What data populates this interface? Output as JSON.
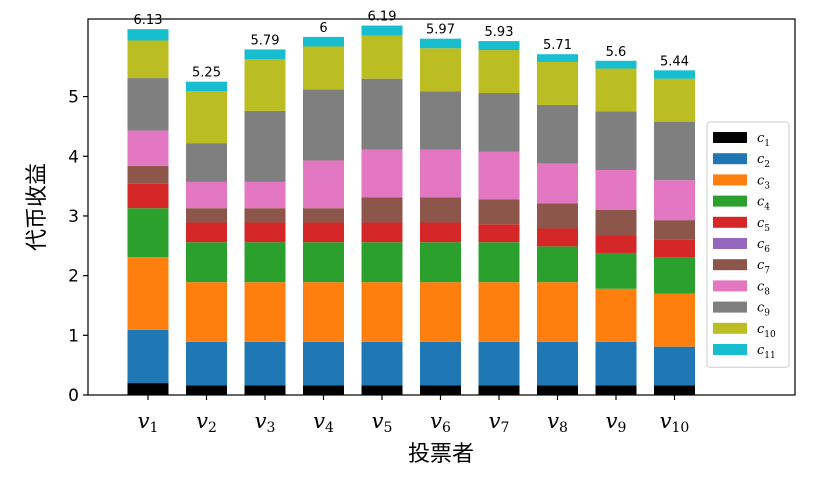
{
  "chart_data": {
    "type": "bar",
    "stacked": true,
    "categories": [
      {
        "base": "v",
        "sub": "1"
      },
      {
        "base": "v",
        "sub": "2"
      },
      {
        "base": "v",
        "sub": "3"
      },
      {
        "base": "v",
        "sub": "4"
      },
      {
        "base": "v",
        "sub": "5"
      },
      {
        "base": "v",
        "sub": "6"
      },
      {
        "base": "v",
        "sub": "7"
      },
      {
        "base": "v",
        "sub": "8"
      },
      {
        "base": "v",
        "sub": "9"
      },
      {
        "base": "v",
        "sub": "10"
      }
    ],
    "xlabel": "投票者",
    "ylabel": "代币收益",
    "ylim": [
      0,
      6.3
    ],
    "yticks": [
      "0",
      "1",
      "2",
      "3",
      "4",
      "5"
    ],
    "totals": [
      "6.13",
      "5.25",
      "5.79",
      "6",
      "6.19",
      "5.97",
      "5.93",
      "5.71",
      "5.6",
      "5.44"
    ],
    "legend_position": "right",
    "grid": false,
    "series": [
      {
        "name": {
          "base": "c",
          "sub": "1"
        },
        "color": "#000000",
        "values": [
          0.2,
          0.16,
          0.16,
          0.16,
          0.16,
          0.16,
          0.16,
          0.16,
          0.16,
          0.16
        ]
      },
      {
        "name": {
          "base": "c",
          "sub": "2"
        },
        "color": "#1f77b4",
        "values": [
          0.89,
          0.73,
          0.73,
          0.73,
          0.73,
          0.73,
          0.73,
          0.73,
          0.73,
          0.65
        ]
      },
      {
        "name": {
          "base": "c",
          "sub": "3"
        },
        "color": "#ff7f0e",
        "values": [
          1.22,
          1.0,
          1.0,
          1.0,
          1.0,
          1.0,
          1.0,
          1.0,
          0.89,
          0.89
        ]
      },
      {
        "name": {
          "base": "c",
          "sub": "4"
        },
        "color": "#2ca02c",
        "values": [
          0.82,
          0.67,
          0.67,
          0.67,
          0.67,
          0.67,
          0.67,
          0.6,
          0.6,
          0.6
        ]
      },
      {
        "name": {
          "base": "c",
          "sub": "5"
        },
        "color": "#d62728",
        "values": [
          0.41,
          0.33,
          0.33,
          0.33,
          0.33,
          0.33,
          0.3,
          0.3,
          0.3,
          0.3
        ]
      },
      {
        "name": {
          "base": "c",
          "sub": "6"
        },
        "color": "#9467bd",
        "values": [
          0,
          0,
          0,
          0,
          0,
          0,
          0,
          0,
          0,
          0
        ]
      },
      {
        "name": {
          "base": "c",
          "sub": "7"
        },
        "color": "#8c564b",
        "values": [
          0.3,
          0.24,
          0.24,
          0.24,
          0.42,
          0.42,
          0.42,
          0.42,
          0.42,
          0.33
        ]
      },
      {
        "name": {
          "base": "c",
          "sub": "8"
        },
        "color": "#e377c2",
        "values": [
          0.59,
          0.44,
          0.44,
          0.8,
          0.8,
          0.8,
          0.8,
          0.67,
          0.67,
          0.67
        ]
      },
      {
        "name": {
          "base": "c",
          "sub": "9"
        },
        "color": "#7f7f7f",
        "values": [
          0.88,
          0.65,
          1.19,
          1.19,
          1.19,
          0.98,
          0.98,
          0.98,
          0.98,
          0.98
        ]
      },
      {
        "name": {
          "base": "c",
          "sub": "10"
        },
        "color": "#bcbd22",
        "values": [
          0.63,
          0.87,
          0.87,
          0.72,
          0.72,
          0.72,
          0.72,
          0.72,
          0.72,
          0.72
        ]
      },
      {
        "name": {
          "base": "c",
          "sub": "11"
        },
        "color": "#17becf",
        "values": [
          0.19,
          0.16,
          0.16,
          0.16,
          0.17,
          0.16,
          0.15,
          0.13,
          0.13,
          0.14
        ]
      }
    ]
  }
}
